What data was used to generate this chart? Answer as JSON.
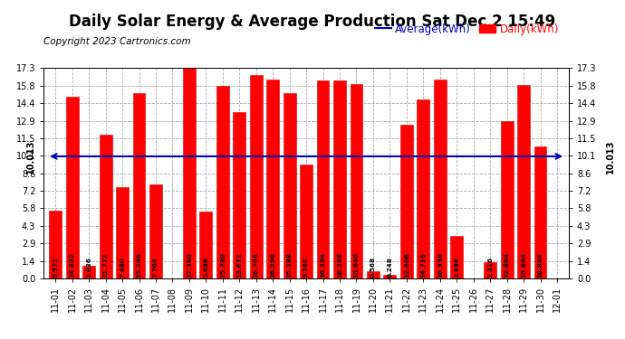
{
  "title": "Daily Solar Energy & Average Production Sat Dec 2 15:49",
  "copyright": "Copyright 2023 Cartronics.com",
  "legend_average": "Average(kWh)",
  "legend_daily": "Daily(kWh)",
  "average_value": 10.013,
  "categories": [
    "11-01",
    "11-02",
    "11-03",
    "11-04",
    "11-05",
    "11-06",
    "11-07",
    "11-08",
    "11-09",
    "11-10",
    "11-11",
    "11-12",
    "11-13",
    "11-14",
    "11-15",
    "11-16",
    "11-17",
    "11-18",
    "11-19",
    "11-20",
    "11-21",
    "11-22",
    "11-23",
    "11-24",
    "11-25",
    "11-26",
    "11-27",
    "11-28",
    "11-29",
    "11-30",
    "12-01"
  ],
  "values": [
    5.572,
    14.892,
    1.036,
    11.772,
    7.48,
    15.24,
    7.704,
    0.0,
    17.36,
    5.488,
    15.78,
    13.672,
    16.704,
    16.296,
    15.188,
    9.34,
    16.264,
    16.268,
    15.94,
    0.568,
    0.248,
    12.608,
    14.716,
    16.356,
    3.496,
    0.0,
    1.316,
    12.884,
    15.864,
    10.804,
    0.0
  ],
  "bar_color": "#ff0000",
  "bar_edge_color": "#dd0000",
  "average_line_color": "#0000bb",
  "background_color": "#ffffff",
  "grid_color": "#aaaaaa",
  "ylim_max": 17.3,
  "yticks": [
    0.0,
    1.4,
    2.9,
    4.3,
    5.8,
    7.2,
    8.6,
    10.1,
    11.5,
    12.9,
    14.4,
    15.8,
    17.3
  ],
  "title_fontsize": 12,
  "copyright_fontsize": 7.5,
  "tick_label_fontsize": 7,
  "bar_label_fontsize": 5.2,
  "avg_label_fontsize": 7,
  "legend_fontsize": 8.5
}
